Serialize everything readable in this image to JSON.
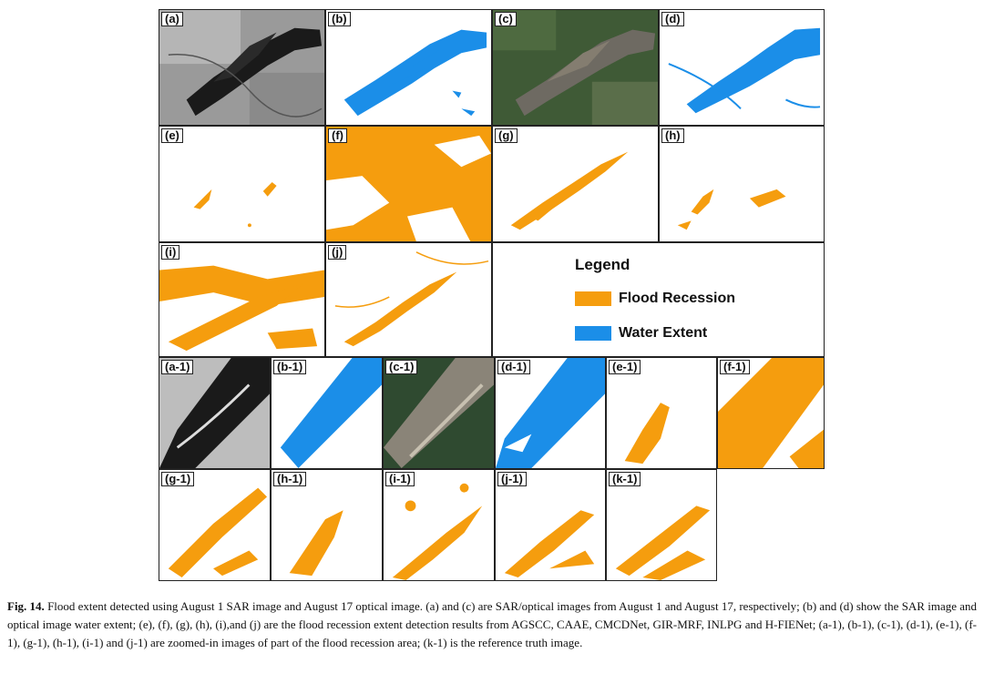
{
  "colors": {
    "flood_recession": "#f59d0e",
    "water_extent": "#1b8ee8"
  },
  "panels": {
    "a": "(a)",
    "b": "(b)",
    "c": "(c)",
    "d": "(d)",
    "e": "(e)",
    "f": "(f)",
    "g": "(g)",
    "h": "(h)",
    "i": "(i)",
    "j": "(j)",
    "a1": "(a-1)",
    "b1": "(b-1)",
    "c1": "(c-1)",
    "d1": "(d-1)",
    "e1": "(e-1)",
    "f1": "(f-1)",
    "g1": "(g-1)",
    "h1": "(h-1)",
    "i1": "(i-1)",
    "j1": "(j-1)",
    "k1": "(k-1)"
  },
  "legend": {
    "title": "Legend",
    "items": [
      {
        "label": "Flood Recession",
        "color": "#f59d0e"
      },
      {
        "label": "Water Extent",
        "color": "#1b8ee8"
      }
    ]
  },
  "caption": {
    "figure_label": "Fig. 14.",
    "text": "Flood extent detected using August 1 SAR image and August 17 optical image. (a) and (c) are SAR/optical images from August 1 and August 17, respectively; (b) and (d) show the SAR image and optical image water extent; (e), (f), (g), (h), (i),and (j) are the flood recession extent detection results from AGSCC, CAAE, CMCDNet, GIR-MRF, INLPG and H-FIENet; (a-1), (b-1), (c-1), (d-1), (e-1), (f-1), (g-1), (h-1), (i-1) and (j-1) are zoomed-in images of part of the flood recession area; (k-1) is the reference truth image."
  }
}
